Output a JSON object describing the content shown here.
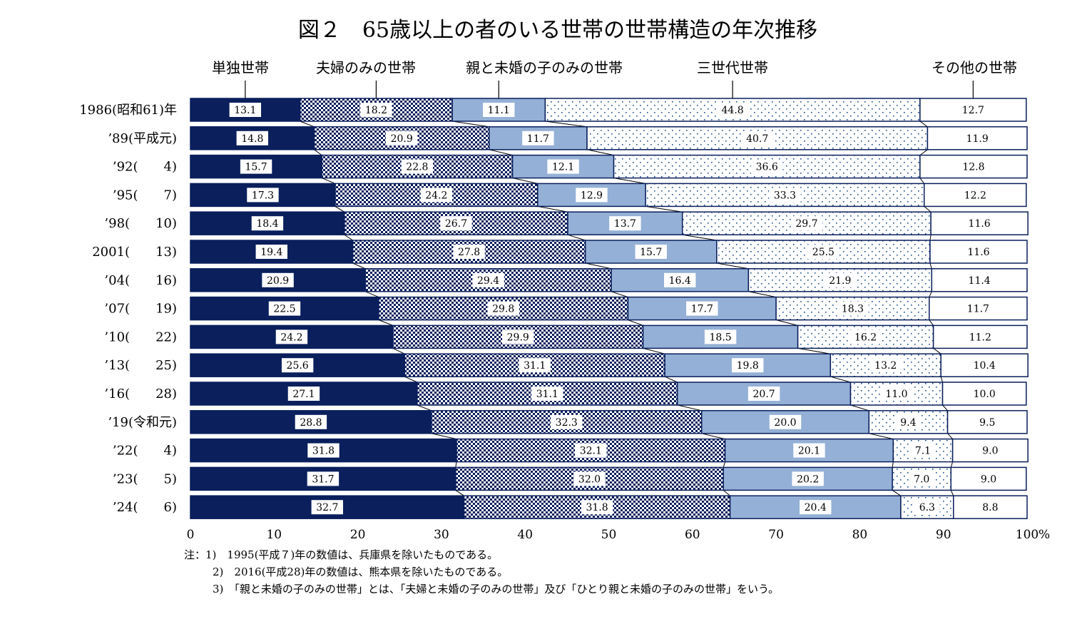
{
  "chart_data": {
    "type": "bar",
    "orientation": "horizontal",
    "stacked": true,
    "title": "図２　65歳以上の者のいる世帯の世帯構造の年次推移",
    "categories": [
      "1986(昭和61)年",
      "’89(平成元)",
      "’92(　　4)",
      "’95(　　7)",
      "’98(　　10)",
      "2001(　　13)",
      "’04(　　16)",
      "’07(　　19)",
      "’10(　　22)",
      "’13(　　25)",
      "’16(　　28)",
      "’19(令和元)",
      "’22(　　4)",
      "’23(　　5)",
      "’24(　　6)"
    ],
    "series": [
      {
        "name": "単独世帯",
        "values": [
          13.1,
          14.8,
          15.7,
          17.3,
          18.4,
          19.4,
          20.9,
          22.5,
          24.2,
          25.6,
          27.1,
          28.8,
          31.8,
          31.7,
          32.7
        ]
      },
      {
        "name": "夫婦のみの世帯",
        "values": [
          18.2,
          20.9,
          22.8,
          24.2,
          26.7,
          27.8,
          29.4,
          29.8,
          29.9,
          31.1,
          31.1,
          32.3,
          32.1,
          32.0,
          31.8
        ]
      },
      {
        "name": "親と未婚の子のみの世帯",
        "values": [
          11.1,
          11.7,
          12.1,
          12.9,
          13.7,
          15.7,
          16.4,
          17.7,
          18.5,
          19.8,
          20.7,
          20.0,
          20.1,
          20.2,
          20.4
        ]
      },
      {
        "name": "三世代世帯",
        "values": [
          44.8,
          40.7,
          36.6,
          33.3,
          29.7,
          25.5,
          21.9,
          18.3,
          16.2,
          13.2,
          11.0,
          9.4,
          7.1,
          7.0,
          6.3
        ]
      },
      {
        "name": "その他の世帯",
        "values": [
          12.7,
          11.9,
          12.8,
          12.2,
          11.6,
          11.6,
          11.4,
          11.7,
          11.2,
          10.4,
          10.0,
          9.5,
          9.0,
          9.0,
          8.8
        ]
      }
    ],
    "xlim": [
      0,
      100
    ],
    "x_ticks": [
      "0",
      "10",
      "20",
      "30",
      "40",
      "50",
      "60",
      "70",
      "80",
      "90",
      "100"
    ],
    "x_unit": "%",
    "legend_position": "top",
    "grid": false,
    "colors": {
      "single": "#0a1f5c",
      "couple_pattern": "#0a1f5c",
      "parent_child": "#94b0d6",
      "three_gen_dots": "#1a4f8c",
      "other": "#ffffff",
      "outline": "#0a1f5c"
    }
  },
  "notes": [
    "注：1)　1995(平成７)年の数値は、兵庫県を除いたものである。",
    "2)　2016(平成28)年の数値は、熊本県を除いたものである。",
    "3)　「親と未婚の子のみの世帯」とは、「夫婦と未婚の子のみの世帯」及び「ひとり親と未婚の子のみの世帯」をいう。"
  ]
}
